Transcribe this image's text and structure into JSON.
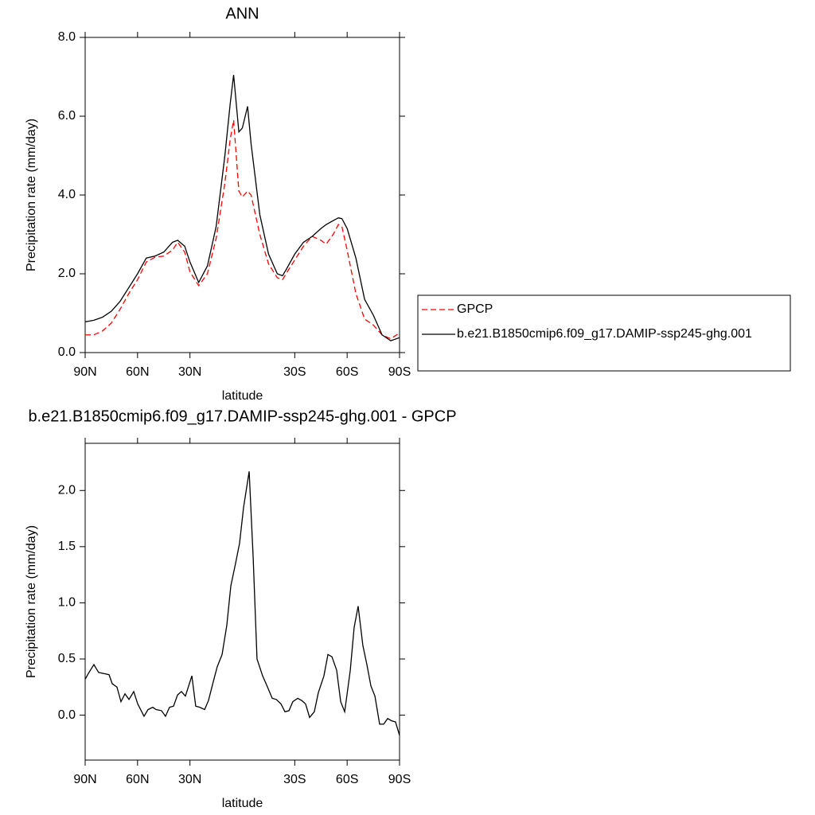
{
  "chart_data": [
    {
      "type": "line",
      "title": "ANN",
      "xlabel": "latitude",
      "ylabel": "Precipitation rate (mm/day)",
      "x": [
        90,
        85,
        80,
        75,
        70,
        65,
        60,
        55,
        50,
        45,
        40,
        37,
        33,
        30,
        25,
        20,
        15,
        10,
        7,
        5,
        2,
        0,
        -3,
        -5,
        -10,
        -15,
        -20,
        -23,
        -25,
        -30,
        -35,
        -40,
        -45,
        -48,
        -52,
        -55,
        -57,
        -60,
        -65,
        -70,
        -75,
        -80,
        -85,
        -90
      ],
      "series": [
        {
          "name": "GPCP",
          "color": "#ff0000",
          "line_style": "dashed",
          "values": [
            0.45,
            0.45,
            0.55,
            0.75,
            1.1,
            1.5,
            1.85,
            2.3,
            2.42,
            2.45,
            2.6,
            2.8,
            2.55,
            2.05,
            1.7,
            2.0,
            2.9,
            4.3,
            5.4,
            5.9,
            4.1,
            3.95,
            4.1,
            4.0,
            3.0,
            2.25,
            1.9,
            1.85,
            2.0,
            2.35,
            2.7,
            2.95,
            2.85,
            2.75,
            3.0,
            3.25,
            3.2,
            2.6,
            1.5,
            0.85,
            0.7,
            0.45,
            0.35,
            0.5
          ]
        },
        {
          "name": "b.e21.B1850cmip6.f09_g17.DAMIP-ssp245-ghg.001",
          "color": "#000000",
          "line_style": "solid",
          "values": [
            0.78,
            0.82,
            0.9,
            1.05,
            1.3,
            1.65,
            2.0,
            2.4,
            2.45,
            2.55,
            2.8,
            2.85,
            2.7,
            2.3,
            1.78,
            2.2,
            3.2,
            5.0,
            6.3,
            7.05,
            5.6,
            5.7,
            6.25,
            5.3,
            3.5,
            2.5,
            2.0,
            1.95,
            2.1,
            2.5,
            2.8,
            2.95,
            3.15,
            3.25,
            3.35,
            3.42,
            3.4,
            3.15,
            2.4,
            1.35,
            0.95,
            0.45,
            0.3,
            0.38
          ]
        }
      ],
      "xlim": [
        90,
        -90
      ],
      "xticks": [
        {
          "value": 90,
          "label": "90N"
        },
        {
          "value": 60,
          "label": "60N"
        },
        {
          "value": 30,
          "label": "30N"
        },
        {
          "value": -30,
          "label": "30S"
        },
        {
          "value": -60,
          "label": "60S"
        },
        {
          "value": -90,
          "label": "90S"
        }
      ],
      "ylim": [
        0,
        8
      ],
      "yticks": [
        {
          "value": 0,
          "label": "0.0"
        },
        {
          "value": 2,
          "label": "2.0"
        },
        {
          "value": 4,
          "label": "4.0"
        },
        {
          "value": 6,
          "label": "6.0"
        },
        {
          "value": 8,
          "label": "8.0"
        }
      ],
      "legend": "right"
    },
    {
      "type": "line",
      "title": "b.e21.B1850cmip6.f09_g17.DAMIP-ssp245-ghg.001 - GPCP",
      "xlabel": "latitude",
      "ylabel": "Precipitation rate (mm/day)",
      "x": [
        90,
        88.2,
        85,
        82.3,
        79.1,
        76.3,
        74.5,
        71.8,
        69.5,
        67.2,
        64.9,
        62.2,
        59.9,
        56.3,
        54,
        51.3,
        49.4,
        46.3,
        44,
        41.7,
        39.4,
        37.1,
        34.9,
        32.6,
        28.9,
        26.7,
        24.4,
        21.6,
        19.4,
        16.6,
        14.4,
        11.6,
        8.9,
        6.6,
        3.9,
        1.6,
        -0.7,
        -3.9,
        -6.2,
        -8.4,
        -11.6,
        -14.4,
        -17.1,
        -19.4,
        -22.1,
        -24.4,
        -26.7,
        -28.9,
        -31.7,
        -34,
        -36.2,
        -38.5,
        -41.2,
        -43.5,
        -46.7,
        -49,
        -51.3,
        -54,
        -56.3,
        -58.6,
        -61.8,
        -64,
        -66.3,
        -69,
        -71.3,
        -73.6,
        -75.9,
        -78.6,
        -80.9,
        -83.2,
        -85.4,
        -87.7,
        -90
      ],
      "values": [
        0.32,
        0.37,
        0.45,
        0.38,
        0.37,
        0.36,
        0.28,
        0.25,
        0.12,
        0.19,
        0.14,
        0.21,
        0.1,
        -0.01,
        0.05,
        0.07,
        0.05,
        0.04,
        -0.01,
        0.07,
        0.08,
        0.18,
        0.21,
        0.17,
        0.35,
        0.08,
        0.07,
        0.05,
        0.13,
        0.3,
        0.43,
        0.54,
        0.8,
        1.15,
        1.35,
        1.53,
        1.85,
        2.17,
        1.4,
        0.5,
        0.35,
        0.25,
        0.15,
        0.14,
        0.1,
        0.03,
        0.04,
        0.12,
        0.15,
        0.13,
        0.1,
        -0.02,
        0.03,
        0.2,
        0.35,
        0.54,
        0.52,
        0.4,
        0.12,
        0.03,
        0.4,
        0.78,
        0.97,
        0.62,
        0.45,
        0.26,
        0.17,
        -0.08,
        -0.08,
        -0.03,
        -0.05,
        -0.06,
        -0.18
      ],
      "color": "#000000",
      "xlim": [
        90,
        -90
      ],
      "xticks": [
        {
          "value": 90,
          "label": "90N"
        },
        {
          "value": 60,
          "label": "60N"
        },
        {
          "value": 30,
          "label": "30N"
        },
        {
          "value": -30,
          "label": "30S"
        },
        {
          "value": -60,
          "label": "60S"
        },
        {
          "value": -90,
          "label": "90S"
        }
      ],
      "ylim": [
        -0.4,
        2.42
      ],
      "yticks": [
        {
          "value": 0,
          "label": "0.0"
        },
        {
          "value": 0.5,
          "label": "0.5"
        },
        {
          "value": 1,
          "label": "1.0"
        },
        {
          "value": 1.5,
          "label": "1.5"
        },
        {
          "value": 2,
          "label": "2.0"
        }
      ]
    }
  ]
}
